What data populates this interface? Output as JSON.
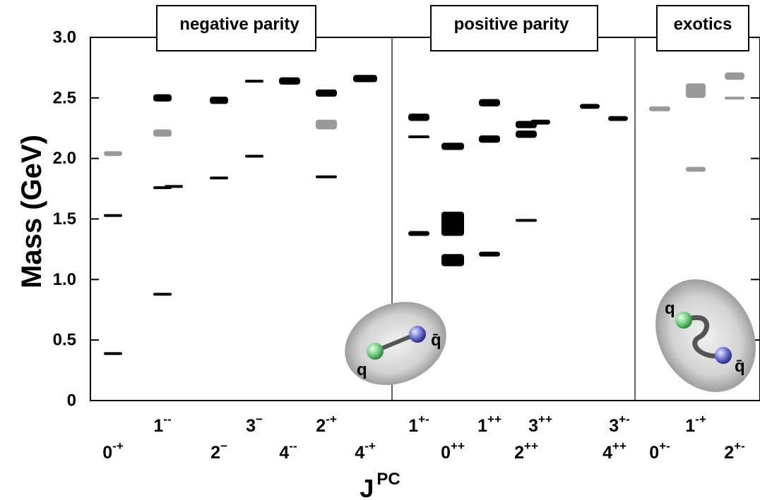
{
  "chart_data": {
    "type": "scatter",
    "ylabel": "Mass (GeV)",
    "xlabel_main": "J",
    "xlabel_sup": "PC",
    "ylim": [
      0,
      3.0
    ],
    "yticks": [
      "0",
      "0.5",
      "1.0",
      "1.5",
      "2.0",
      "2.5",
      "3.0"
    ],
    "regions": [
      {
        "label": "negative parity"
      },
      {
        "label": "positive parity"
      },
      {
        "label": "exotics"
      }
    ],
    "categories": [
      {
        "j": "0",
        "pc": "-+"
      },
      {
        "j": "1",
        "pc": "--"
      },
      {
        "j": "2",
        "pc": "−"
      },
      {
        "j": "3",
        "pc": "−"
      },
      {
        "j": "4",
        "pc": "--"
      },
      {
        "j": "2",
        "pc": "-+"
      },
      {
        "j": "4",
        "pc": "-+"
      },
      {
        "j": "1",
        "pc": "+-"
      },
      {
        "j": "0",
        "pc": "++"
      },
      {
        "j": "1",
        "pc": "++"
      },
      {
        "j": "2",
        "pc": "++"
      },
      {
        "j": "3",
        "pc": "++"
      },
      {
        "j": "4",
        "pc": "++"
      },
      {
        "j": "3",
        "pc": "+-"
      },
      {
        "j": "0",
        "pc": "+-"
      },
      {
        "j": "1",
        "pc": "-+"
      },
      {
        "j": "2",
        "pc": "+-"
      }
    ],
    "states": [
      {
        "category": "0-+",
        "mass": 0.39,
        "uncertainty": 0.01,
        "status": "established"
      },
      {
        "category": "0-+",
        "mass": 1.53,
        "uncertainty": 0.01,
        "status": "established"
      },
      {
        "category": "0-+",
        "mass": 2.04,
        "uncertainty": 0.02,
        "status": "uncertain"
      },
      {
        "category": "1--",
        "mass": 0.88,
        "uncertainty": 0.01,
        "status": "established"
      },
      {
        "category": "1--",
        "mass": 1.77,
        "uncertainty": 0.01,
        "status": "established"
      },
      {
        "category": "1--",
        "mass": 1.76,
        "uncertainty": 0.01,
        "status": "established"
      },
      {
        "category": "1--",
        "mass": 2.21,
        "uncertainty": 0.03,
        "status": "uncertain"
      },
      {
        "category": "1--",
        "mass": 2.5,
        "uncertainty": 0.03,
        "status": "established"
      },
      {
        "category": "2−",
        "mass": 1.84,
        "uncertainty": 0.01,
        "status": "established"
      },
      {
        "category": "2−",
        "mass": 2.48,
        "uncertainty": 0.03,
        "status": "established"
      },
      {
        "category": "3−",
        "mass": 2.02,
        "uncertainty": 0.01,
        "status": "established"
      },
      {
        "category": "3−",
        "mass": 2.64,
        "uncertainty": 0.01,
        "status": "established"
      },
      {
        "category": "4--",
        "mass": 2.64,
        "uncertainty": 0.03,
        "status": "established"
      },
      {
        "category": "2-+",
        "mass": 1.85,
        "uncertainty": 0.01,
        "status": "established"
      },
      {
        "category": "2-+",
        "mass": 2.28,
        "uncertainty": 0.04,
        "status": "uncertain"
      },
      {
        "category": "2-+",
        "mass": 2.54,
        "uncertainty": 0.03,
        "status": "established"
      },
      {
        "category": "4-+",
        "mass": 2.66,
        "uncertainty": 0.03,
        "status": "established"
      },
      {
        "category": "1+-",
        "mass": 1.38,
        "uncertainty": 0.02,
        "status": "established"
      },
      {
        "category": "1+-",
        "mass": 2.18,
        "uncertainty": 0.01,
        "status": "established"
      },
      {
        "category": "1+-",
        "mass": 2.34,
        "uncertainty": 0.03,
        "status": "established"
      },
      {
        "category": "0++",
        "mass": 1.16,
        "uncertainty": 0.05,
        "status": "established"
      },
      {
        "category": "0++",
        "mass": 1.46,
        "uncertainty": 0.1,
        "status": "established"
      },
      {
        "category": "0++",
        "mass": 2.1,
        "uncertainty": 0.03,
        "status": "established"
      },
      {
        "category": "1++",
        "mass": 1.21,
        "uncertainty": 0.02,
        "status": "established"
      },
      {
        "category": "1++",
        "mass": 2.16,
        "uncertainty": 0.03,
        "status": "established"
      },
      {
        "category": "1++",
        "mass": 2.46,
        "uncertainty": 0.03,
        "status": "established"
      },
      {
        "category": "2++",
        "mass": 1.49,
        "uncertainty": 0.01,
        "status": "established"
      },
      {
        "category": "2++",
        "mass": 2.2,
        "uncertainty": 0.03,
        "status": "established"
      },
      {
        "category": "2++",
        "mass": 2.28,
        "uncertainty": 0.03,
        "status": "established"
      },
      {
        "category": "3++",
        "mass": 2.3,
        "uncertainty": 0.02,
        "status": "established"
      },
      {
        "category": "4++",
        "mass": 2.43,
        "uncertainty": 0.02,
        "status": "established"
      },
      {
        "category": "3+-",
        "mass": 2.33,
        "uncertainty": 0.02,
        "status": "established"
      },
      {
        "category": "0+-",
        "mass": 2.41,
        "uncertainty": 0.02,
        "status": "uncertain"
      },
      {
        "category": "1-+",
        "mass": 1.91,
        "uncertainty": 0.02,
        "status": "uncertain"
      },
      {
        "category": "1-+",
        "mass": 2.56,
        "uncertainty": 0.06,
        "status": "uncertain"
      },
      {
        "category": "2+-",
        "mass": 2.5,
        "uncertainty": 0.01,
        "status": "uncertain"
      },
      {
        "category": "2+-",
        "mass": 2.68,
        "uncertainty": 0.03,
        "status": "uncertain"
      }
    ],
    "insets": [
      {
        "region": "negative parity",
        "quark": "q",
        "antiquark": "q̄",
        "string": "straight"
      },
      {
        "region": "exotics",
        "quark": "q",
        "antiquark": "q̄",
        "string": "excited"
      }
    ],
    "grid": false,
    "colors": {
      "established": "#000000",
      "uncertain": "#999999",
      "quark": "#6fcf7f",
      "antiquark": "#6a6fd0",
      "bag": "#c4c4c4"
    }
  }
}
